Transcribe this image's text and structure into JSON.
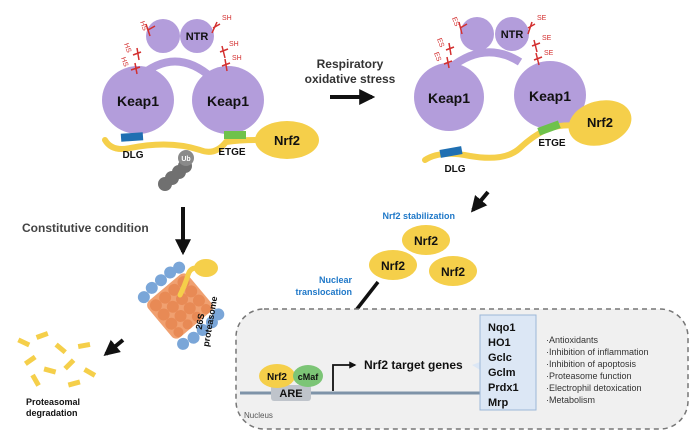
{
  "left": {
    "ntr": "NTR",
    "keap1_left": "Keap1",
    "keap1_right": "Keap1",
    "dlg": "DLG",
    "etge": "ETGE",
    "nrf2": "Nrf2",
    "ub": "Ub",
    "sh_marks": [
      "HS",
      "SH",
      "HS",
      "SH",
      "HS",
      "SH"
    ]
  },
  "right": {
    "ntr": "NTR",
    "keap1_left": "Keap1",
    "keap1_right": "Keap1",
    "dlg": "DLG",
    "etge": "ETGE",
    "nrf2": "Nrf2",
    "se_marks": [
      "ES",
      "SE",
      "ES",
      "SE",
      "ES",
      "SE"
    ]
  },
  "arrow_label": [
    "Respiratory",
    "oxidative stress"
  ],
  "constitutive_condition": "Constitutive condition",
  "proteasome_label": [
    "26S",
    "proteasome"
  ],
  "proteasomal_degradation": [
    "Proteasomal",
    "degradation"
  ],
  "nrf2_stabilization": "Nrf2 stabilization",
  "nrf2_cluster": [
    "Nrf2",
    "Nrf2",
    "Nrf2"
  ],
  "nuclear_translocation": [
    "Nuclear",
    "translocation"
  ],
  "nucleus": {
    "label": "Nucleus",
    "nrf2": "Nrf2",
    "cmaf": "cMaf",
    "are": "ARE",
    "target_genes": "Nrf2 target genes",
    "genes": [
      "Nqo1",
      "HO1",
      "Gclc",
      "Gclm",
      "Prdx1",
      "Mrp"
    ],
    "functions": [
      "Antioxidants",
      "Inhibition of inflammation",
      "Inhibition of apoptosis",
      "Proteasome function",
      "Electrophil detoxication",
      "Metabolism"
    ]
  },
  "colors": {
    "keap1": "#b39ddb",
    "nrf2": "#f5cf4a",
    "dlg": "#1f6fb2",
    "etge": "#6ec24b",
    "cmaf": "#7cc576",
    "are": "#bfc4cb",
    "proteasome_core": "#f0a070",
    "proteasome_cap": "#7aa6d8",
    "red_mark": "#d32f2f",
    "blue_text": "#1f78c8",
    "gene_box": "#dce7f5"
  }
}
